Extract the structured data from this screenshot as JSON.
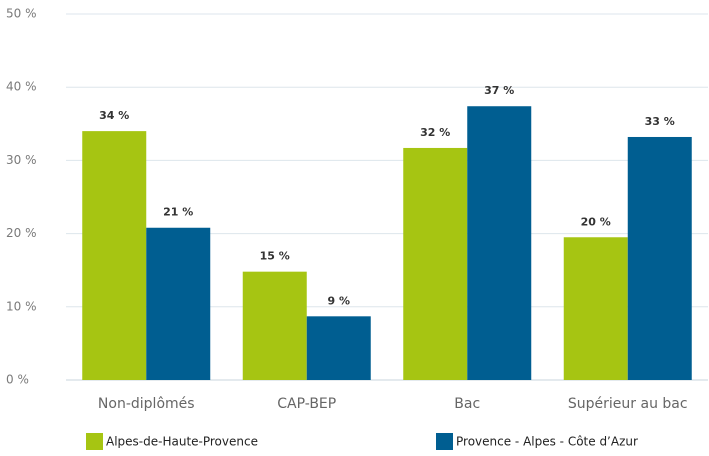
{
  "chart_data": {
    "type": "bar",
    "categories": [
      "Non-diplômés",
      "CAP-BEP",
      "Bac",
      "Supérieur au bac"
    ],
    "series": [
      {
        "name": "Alpes-de-Haute-Provence",
        "color": "#a6c512",
        "values": [
          34.0,
          14.8,
          31.7,
          19.5
        ],
        "value_labels": [
          "34 %",
          "15 %",
          "32 %",
          "20 %"
        ]
      },
      {
        "name": "Provence - Alpes - Côte d’Azur",
        "color": "#005e91",
        "values": [
          20.8,
          8.7,
          37.4,
          33.2
        ],
        "value_labels": [
          "21 %",
          "9 %",
          "37 %",
          "33 %"
        ]
      }
    ],
    "ylim": [
      0,
      50
    ],
    "yticks": [
      {
        "value": 0,
        "label": "0 %"
      },
      {
        "value": 10,
        "label": "10 %"
      },
      {
        "value": 20,
        "label": "20 %"
      },
      {
        "value": 30,
        "label": "30 %"
      },
      {
        "value": 40,
        "label": "40 %"
      },
      {
        "value": 50,
        "label": "50 %"
      }
    ],
    "grid": true
  }
}
